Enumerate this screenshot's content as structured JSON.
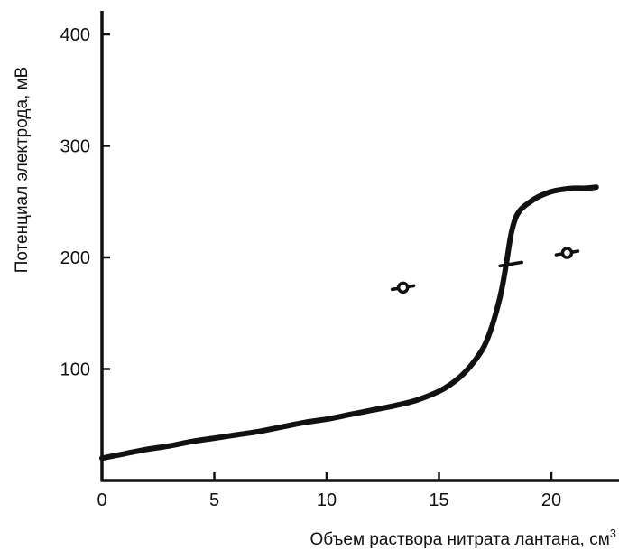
{
  "chart_data": {
    "type": "line",
    "title": "",
    "xlabel": "Объем раствора нитрата лантана, см",
    "xlabel_sup": "3",
    "ylabel": "Потенциал электрода, мВ",
    "xlim": [
      0,
      23
    ],
    "ylim": [
      0,
      420
    ],
    "x_ticks": [
      0,
      5,
      10,
      15,
      20
    ],
    "x_tick_labels": [
      "0",
      "5",
      "10",
      "15",
      "20"
    ],
    "y_ticks": [
      100,
      200,
      300,
      400
    ],
    "y_tick_labels": [
      "100",
      "200",
      "300",
      "400"
    ],
    "grid": false,
    "series": [
      {
        "x": [
          0,
          1,
          2,
          3,
          4,
          5,
          6,
          7,
          8,
          9,
          10,
          11,
          12,
          13,
          14,
          15,
          15.5,
          16,
          16.5,
          17,
          17.3,
          17.6,
          17.8,
          18,
          18.2,
          18.4,
          18.6,
          18.8,
          19,
          19.3,
          19.6,
          20,
          20.5,
          21,
          21.5,
          22
        ],
        "y": [
          20,
          24,
          28,
          31,
          35,
          38,
          41,
          44,
          48,
          52,
          55,
          59,
          63,
          67,
          72,
          80,
          86,
          94,
          105,
          120,
          135,
          155,
          172,
          195,
          220,
          235,
          242,
          246,
          249,
          253,
          256,
          259,
          261,
          262,
          262,
          263
        ]
      }
    ],
    "markers": [
      {
        "kind": "circle",
        "x": 13.4,
        "y": 173
      },
      {
        "kind": "dash",
        "x": 18.2,
        "y": 194
      },
      {
        "kind": "circle",
        "x": 20.7,
        "y": 204
      }
    ]
  }
}
